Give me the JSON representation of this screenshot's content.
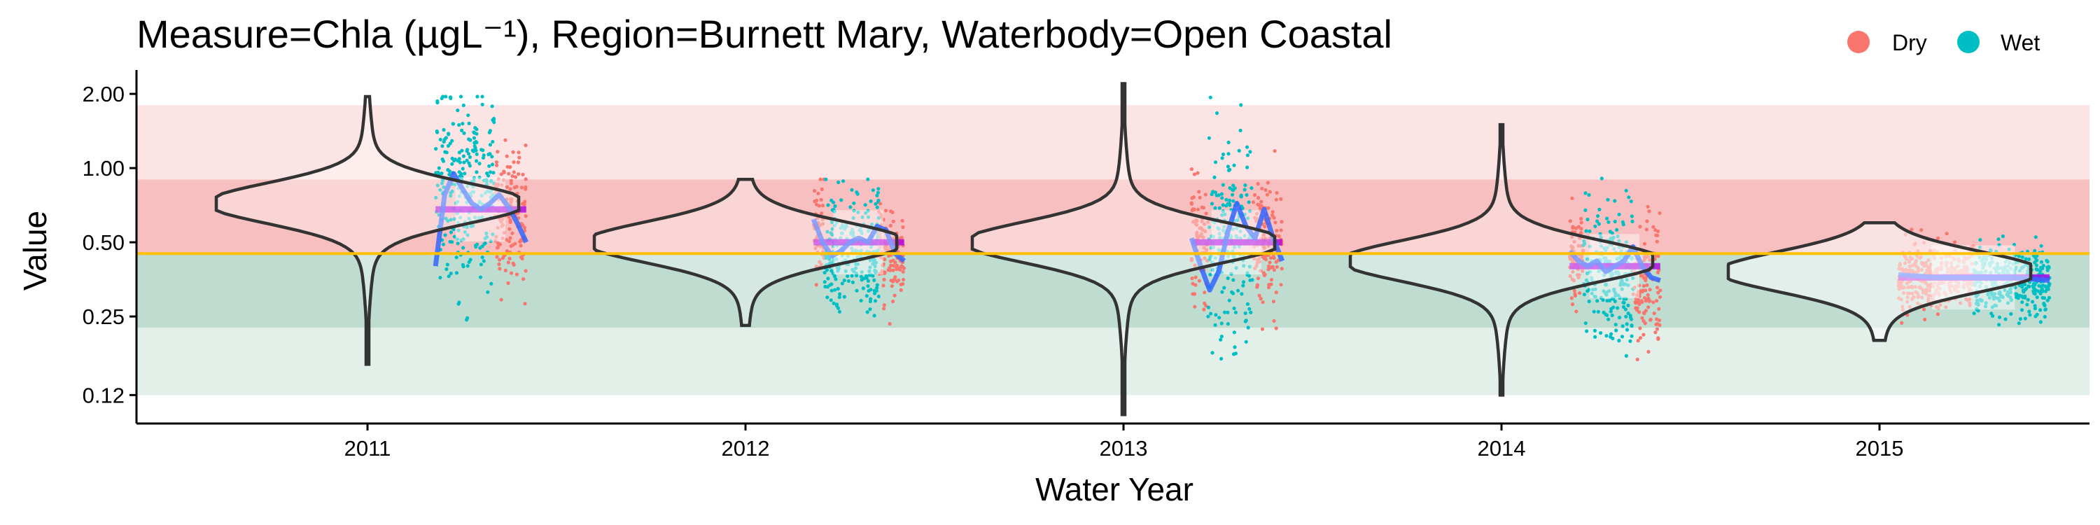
{
  "chart_data": {
    "type": "scatter",
    "title": "Measure=Chla (µgL⁻¹), Region=Burnett Mary, Waterbody=Open Coastal",
    "xlabel": "Water Year",
    "ylabel": "Value",
    "y_scale": "log",
    "ylim": [
      0.092,
      2.5
    ],
    "y_ticks": [
      {
        "value": 0.12,
        "label": "0.12"
      },
      {
        "value": 0.25,
        "label": "0.25"
      },
      {
        "value": 0.5,
        "label": "0.50"
      },
      {
        "value": 1.0,
        "label": "1.00"
      },
      {
        "value": 2.0,
        "label": "2.00"
      }
    ],
    "categories": [
      "2011",
      "2012",
      "2013",
      "2014",
      "2015"
    ],
    "guideline": 0.45,
    "bands": [
      {
        "from": 0.12,
        "to": 0.225,
        "color": "#e3efe9"
      },
      {
        "from": 0.225,
        "to": 0.45,
        "color": "#bfdcd1"
      },
      {
        "from": 0.45,
        "to": 0.9,
        "color": "#f7bfbf"
      },
      {
        "from": 0.9,
        "to": 1.8,
        "color": "#fce4e4"
      }
    ],
    "legend": {
      "position": "top-right",
      "entries": [
        {
          "label": "Dry",
          "color": "#f8766d"
        },
        {
          "label": "Wet",
          "color": "#00bfc4"
        }
      ]
    },
    "colors": {
      "dry": "#f8766d",
      "wet": "#00bfc4",
      "smooth": "#3366ff",
      "annual_mean": "#b000e6",
      "guideline": "#ffc000",
      "violin": "#333333"
    },
    "years": [
      {
        "year": "2011",
        "annual_mean": 0.68,
        "median": 0.72,
        "range": [
          0.16,
          1.95
        ],
        "span": [
          0.18,
          0.42
        ],
        "segments": [
          {
            "season": "Wet",
            "from": 0.0,
            "to": 0.65,
            "center": 0.85,
            "spread": 0.42
          },
          {
            "season": "Dry",
            "from": 0.65,
            "to": 1.0,
            "center": 0.62,
            "spread": 0.3
          }
        ],
        "smooth": [
          0.4,
          0.78,
          0.95,
          0.82,
          0.72,
          0.68,
          0.72,
          0.78,
          0.7,
          0.6,
          0.5
        ]
      },
      {
        "year": "2012",
        "annual_mean": 0.5,
        "median": 0.5,
        "range": [
          0.23,
          0.9
        ],
        "span": [
          0.18,
          0.42
        ],
        "segments": [
          {
            "season": "Dry",
            "from": 0.0,
            "to": 0.12,
            "center": 0.5,
            "spread": 0.25
          },
          {
            "season": "Wet",
            "from": 0.12,
            "to": 0.72,
            "center": 0.47,
            "spread": 0.28
          },
          {
            "season": "Dry",
            "from": 0.72,
            "to": 1.0,
            "center": 0.45,
            "spread": 0.22
          }
        ],
        "smooth": [
          0.62,
          0.5,
          0.44,
          0.46,
          0.5,
          0.52,
          0.5,
          0.58,
          0.56,
          0.45,
          0.42
        ]
      },
      {
        "year": "2013",
        "annual_mean": 0.5,
        "median": 0.5,
        "range": [
          0.1,
          2.2
        ],
        "span": [
          0.18,
          0.42
        ],
        "segments": [
          {
            "season": "Dry",
            "from": 0.0,
            "to": 0.18,
            "center": 0.5,
            "spread": 0.3
          },
          {
            "season": "Wet",
            "from": 0.18,
            "to": 0.68,
            "center": 0.52,
            "spread": 0.45
          },
          {
            "season": "Dry",
            "from": 0.68,
            "to": 1.0,
            "center": 0.5,
            "spread": 0.28
          }
        ],
        "smooth": [
          0.52,
          0.4,
          0.32,
          0.38,
          0.55,
          0.72,
          0.58,
          0.52,
          0.68,
          0.52,
          0.42
        ]
      },
      {
        "year": "2014",
        "annual_mean": 0.4,
        "median": 0.42,
        "range": [
          0.12,
          1.5
        ],
        "span": [
          0.18,
          0.42
        ],
        "segments": [
          {
            "season": "Dry",
            "from": 0.0,
            "to": 0.15,
            "center": 0.42,
            "spread": 0.2
          },
          {
            "season": "Wet",
            "from": 0.15,
            "to": 0.7,
            "center": 0.38,
            "spread": 0.3
          },
          {
            "season": "Dry",
            "from": 0.7,
            "to": 1.0,
            "center": 0.33,
            "spread": 0.3
          }
        ],
        "smooth": [
          0.46,
          0.42,
          0.4,
          0.42,
          0.38,
          0.4,
          0.42,
          0.48,
          0.4,
          0.36,
          0.35
        ]
      },
      {
        "year": "2015",
        "annual_mean": 0.36,
        "median": 0.38,
        "range": [
          0.2,
          0.6
        ],
        "span": [
          0.05,
          0.45
        ],
        "segments": [
          {
            "season": "Dry",
            "from": 0.0,
            "to": 0.5,
            "center": 0.36,
            "spread": 0.15
          },
          {
            "season": "Wet",
            "from": 0.5,
            "to": 1.0,
            "center": 0.35,
            "spread": 0.15
          }
        ],
        "smooth": [
          0.37,
          0.36,
          0.36,
          0.36,
          0.35
        ]
      }
    ]
  }
}
